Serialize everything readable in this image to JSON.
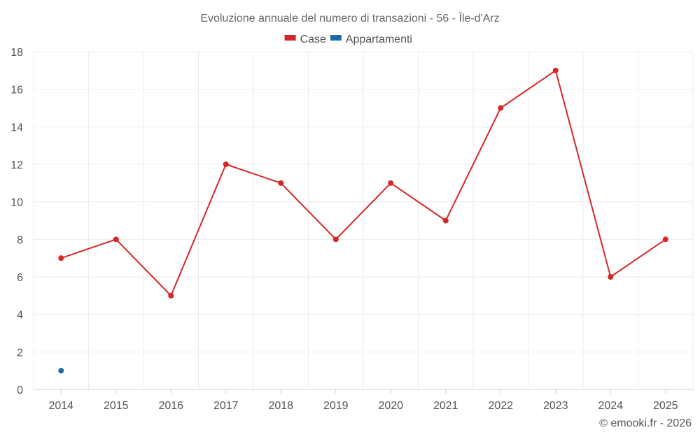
{
  "chart_data": {
    "type": "line",
    "title": "Evoluzione annuale del numero di transazioni - 56 - Île-d'Arz",
    "categories": [
      "2014",
      "2015",
      "2016",
      "2017",
      "2018",
      "2019",
      "2020",
      "2021",
      "2022",
      "2023",
      "2024",
      "2025"
    ],
    "series": [
      {
        "name": "Case",
        "color": "#d62728",
        "values": [
          7,
          8,
          5,
          12,
          11,
          8,
          11,
          9,
          15,
          17,
          6,
          8
        ]
      },
      {
        "name": "Appartamenti",
        "color": "#1f6aa5",
        "values": [
          1,
          null,
          null,
          null,
          null,
          null,
          null,
          null,
          null,
          null,
          null,
          null
        ]
      }
    ],
    "ylim": [
      0,
      18
    ],
    "yticks": [
      0,
      2,
      4,
      6,
      8,
      10,
      12,
      14,
      16,
      18
    ],
    "xlabel": "",
    "ylabel": "",
    "grid": true,
    "legend_position": "top-center"
  },
  "credit": "© emooki.fr - 2026"
}
